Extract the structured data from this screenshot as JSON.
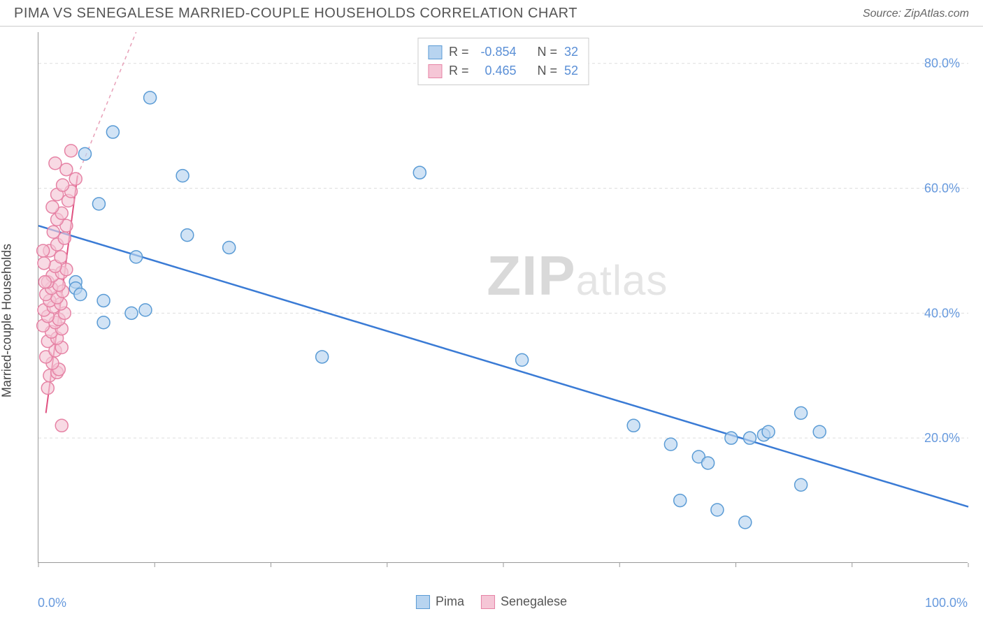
{
  "header": {
    "title": "PIMA VS SENEGALESE MARRIED-COUPLE HOUSEHOLDS CORRELATION CHART",
    "source_label": "Source: ZipAtlas.com"
  },
  "watermark": {
    "bold": "ZIP",
    "light": "atlas"
  },
  "chart": {
    "type": "scatter",
    "y_axis_title": "Married-couple Households",
    "background_color": "#ffffff",
    "grid_color": "#dddddd",
    "axis_color": "#999999",
    "x_range": [
      0,
      100
    ],
    "y_range": [
      0,
      85
    ],
    "x_min_label": "0.0%",
    "x_max_label": "100.0%",
    "x_ticks": [
      0,
      12.5,
      25,
      37.5,
      50,
      62.5,
      75,
      87.5,
      100
    ],
    "y_ticks": [
      {
        "v": 20,
        "label": "20.0%"
      },
      {
        "v": 40,
        "label": "40.0%"
      },
      {
        "v": 60,
        "label": "60.0%"
      },
      {
        "v": 80,
        "label": "80.0%"
      }
    ],
    "marker_radius": 9,
    "marker_stroke_width": 1.5,
    "series": {
      "pima": {
        "label": "Pima",
        "fill": "#b8d4f0",
        "stroke": "#5a9bd5",
        "fill_opacity": 0.65,
        "R": "-0.854",
        "N": "32",
        "points": [
          [
            12,
            74.5
          ],
          [
            8,
            69
          ],
          [
            5,
            65.5
          ],
          [
            15.5,
            62
          ],
          [
            41,
            62.5
          ],
          [
            6.5,
            57.5
          ],
          [
            16,
            52.5
          ],
          [
            10.5,
            49
          ],
          [
            20.5,
            50.5
          ],
          [
            4,
            45
          ],
          [
            4,
            44
          ],
          [
            4.5,
            43
          ],
          [
            7,
            42
          ],
          [
            10,
            40
          ],
          [
            11.5,
            40.5
          ],
          [
            7,
            38.5
          ],
          [
            30.5,
            33
          ],
          [
            52,
            32.5
          ],
          [
            64,
            22
          ],
          [
            68,
            19
          ],
          [
            71,
            17
          ],
          [
            72,
            16
          ],
          [
            74.5,
            20
          ],
          [
            76.5,
            20
          ],
          [
            78,
            20.5
          ],
          [
            78.5,
            21
          ],
          [
            82,
            24
          ],
          [
            82,
            12.5
          ],
          [
            73,
            8.5
          ],
          [
            76,
            6.5
          ],
          [
            69,
            10
          ],
          [
            84,
            21
          ]
        ],
        "regression": {
          "x1": 0,
          "y1": 54,
          "x2": 100,
          "y2": 9,
          "color": "#3a7bd5",
          "width": 2.5
        }
      },
      "senegalese": {
        "label": "Senegalese",
        "fill": "#f5c6d6",
        "stroke": "#e683a5",
        "fill_opacity": 0.65,
        "R": "0.465",
        "N": "52",
        "points": [
          [
            2.5,
            22
          ],
          [
            1,
            28
          ],
          [
            1.2,
            30
          ],
          [
            2,
            30.5
          ],
          [
            2.2,
            31
          ],
          [
            1.5,
            32
          ],
          [
            0.8,
            33
          ],
          [
            1.8,
            34
          ],
          [
            2.5,
            34.5
          ],
          [
            1,
            35.5
          ],
          [
            2,
            36
          ],
          [
            1.4,
            37
          ],
          [
            2.5,
            37.5
          ],
          [
            0.5,
            38
          ],
          [
            1.8,
            38.5
          ],
          [
            2.2,
            39
          ],
          [
            1,
            39.5
          ],
          [
            2.8,
            40
          ],
          [
            0.6,
            40.5
          ],
          [
            1.6,
            41
          ],
          [
            2.4,
            41.5
          ],
          [
            1.2,
            42
          ],
          [
            2,
            42.5
          ],
          [
            0.8,
            43
          ],
          [
            2.6,
            43.5
          ],
          [
            1.4,
            44
          ],
          [
            2.2,
            44.5
          ],
          [
            1,
            45
          ],
          [
            1.5,
            46
          ],
          [
            2.5,
            46.5
          ],
          [
            3,
            47
          ],
          [
            1.8,
            47.5
          ],
          [
            0.6,
            48
          ],
          [
            2.4,
            49
          ],
          [
            1.2,
            50
          ],
          [
            2,
            51
          ],
          [
            2.8,
            52
          ],
          [
            1.6,
            53
          ],
          [
            3,
            54
          ],
          [
            2,
            55
          ],
          [
            2.5,
            56
          ],
          [
            1.5,
            57
          ],
          [
            3.2,
            58
          ],
          [
            2,
            59
          ],
          [
            3.5,
            59.5
          ],
          [
            2.6,
            60.5
          ],
          [
            4,
            61.5
          ],
          [
            3,
            63
          ],
          [
            1.8,
            64
          ],
          [
            3.5,
            66
          ],
          [
            0.5,
            50
          ],
          [
            0.7,
            45
          ]
        ],
        "regression_solid": {
          "x1": 0.8,
          "y1": 24,
          "x2": 4.2,
          "y2": 62,
          "color": "#e05080",
          "width": 2
        },
        "regression_dashed": {
          "x1": 4.2,
          "y1": 62,
          "x2": 10.5,
          "y2": 85,
          "color": "#e8a0b8",
          "width": 1.5,
          "dash": "5,5"
        }
      }
    },
    "legend_top": {
      "rows": [
        {
          "swatch": "blue",
          "r_label": "R =",
          "r_val": "-0.854",
          "n_label": "N =",
          "n_val": "32"
        },
        {
          "swatch": "pink",
          "r_label": "R =",
          "r_val": "0.465",
          "n_label": "N =",
          "n_val": "52"
        }
      ]
    },
    "legend_bottom": {
      "items": [
        {
          "swatch": "blue",
          "label": "Pima"
        },
        {
          "swatch": "pink",
          "label": "Senegalese"
        }
      ]
    }
  }
}
